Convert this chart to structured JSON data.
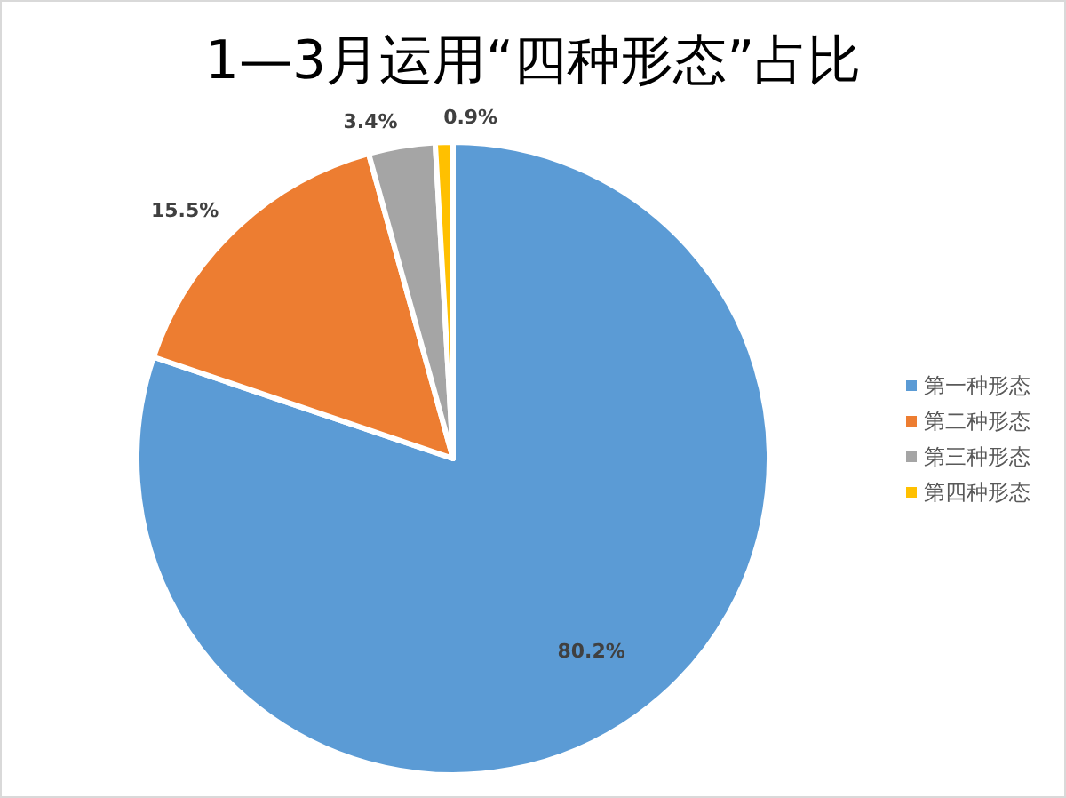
{
  "chart_data": {
    "type": "pie",
    "title": "1—3月运用“四种形态”占比",
    "categories": [
      "第一种形态",
      "第二种形态",
      "第三种形态",
      "第四种形态"
    ],
    "values": [
      80.2,
      15.5,
      3.4,
      0.9
    ],
    "colors": [
      "#5b9bd5",
      "#ed7d31",
      "#a5a5a5",
      "#ffc000"
    ],
    "value_labels": [
      "80.2%",
      "15.5%",
      "3.4%",
      "0.9%"
    ],
    "legend": "right"
  }
}
